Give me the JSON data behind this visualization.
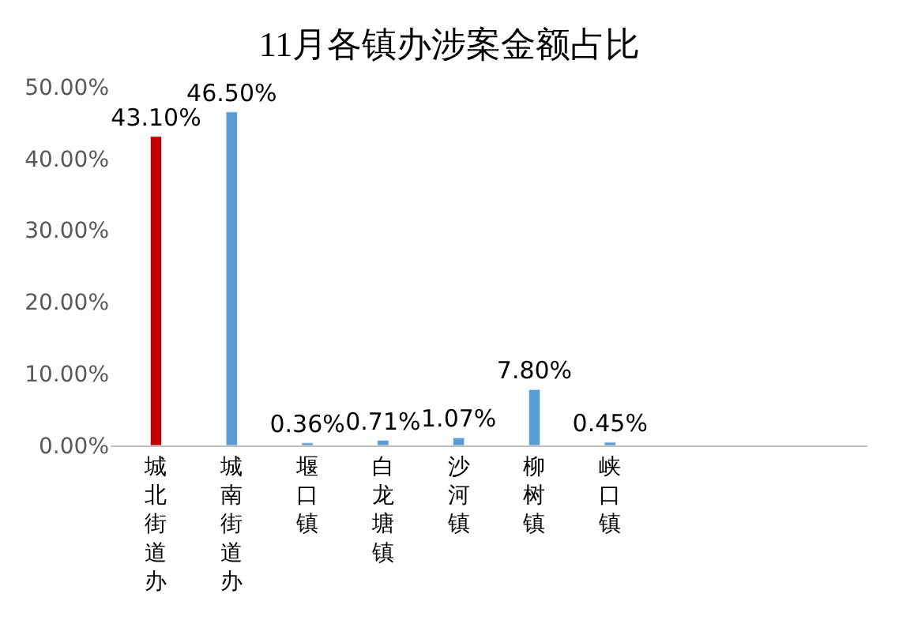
{
  "chart_data": {
    "type": "bar",
    "title": "11月各镇办涉案金额占比",
    "categories": [
      "城北街道办",
      "城南街道办",
      "堰口镇",
      "白龙塘镇",
      "沙河镇",
      "柳树镇",
      "峡口镇"
    ],
    "values": [
      43.1,
      46.5,
      0.36,
      0.71,
      1.07,
      7.8,
      0.45
    ],
    "colors": [
      "#c00000",
      "#5b9bd5",
      "#5b9bd5",
      "#5b9bd5",
      "#5b9bd5",
      "#5b9bd5",
      "#5b9bd5"
    ],
    "value_labels": [
      "43.10%",
      "46.50%",
      "0.36%",
      "0.71%",
      "1.07%",
      "7.80%",
      "0.45%"
    ],
    "ylim": [
      0,
      50
    ],
    "yticks": [
      {
        "value": 0,
        "label": "0.00%"
      },
      {
        "value": 10,
        "label": "10.00%"
      },
      {
        "value": 20,
        "label": "20.00%"
      },
      {
        "value": 30,
        "label": "30.00%"
      },
      {
        "value": 40,
        "label": "40.00%"
      },
      {
        "value": 50,
        "label": "50.00%"
      }
    ],
    "legend": false
  }
}
